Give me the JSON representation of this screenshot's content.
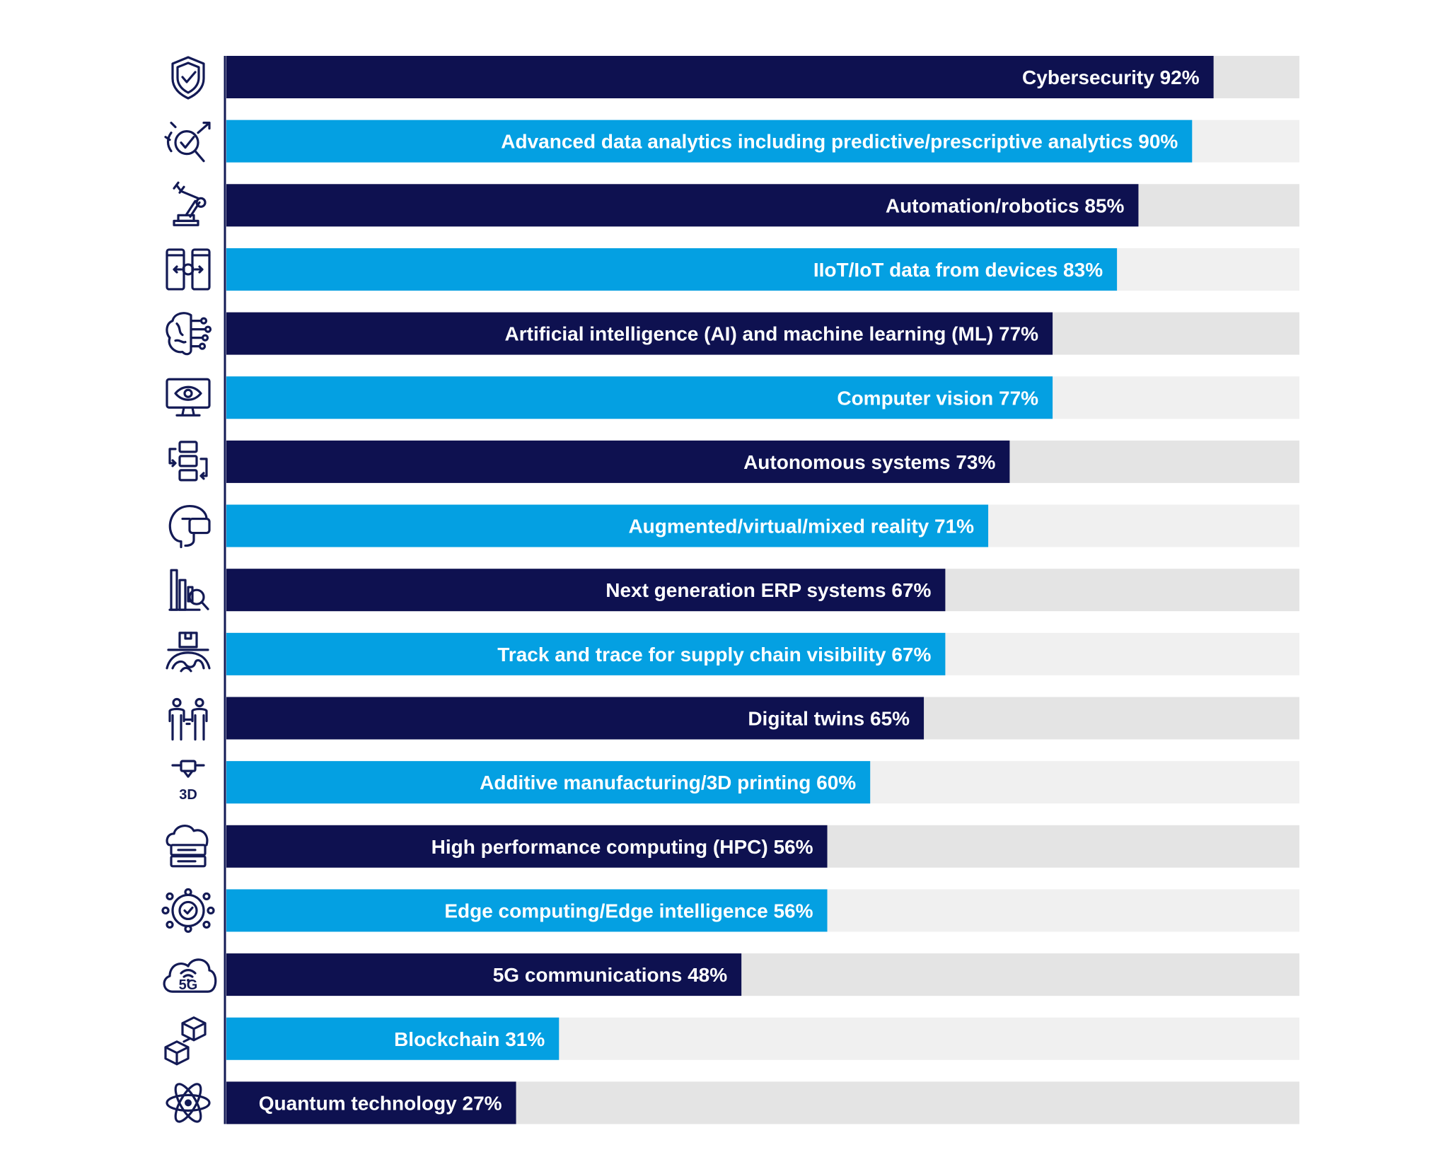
{
  "chart_data": {
    "type": "bar",
    "orientation": "horizontal",
    "xlim": [
      0,
      100
    ],
    "grid": false,
    "legend": "none",
    "colors": {
      "dark": "#0e1150",
      "light": "#04a0e2",
      "track_dark": "#e4e4e4",
      "track_light": "#f0f0f0",
      "axis": "#131a55",
      "label": "#ffffff"
    },
    "categories": [
      "Cybersecurity",
      "Advanced data analytics including predictive/prescriptive analytics",
      "Automation/robotics",
      "IIoT/IoT data from devices",
      "Artificial intelligence (AI) and machine learning (ML)",
      "Computer vision",
      "Autonomous systems",
      "Augmented/virtual/mixed reality",
      "Next generation ERP systems",
      "Track and trace for supply chain visibility",
      "Digital twins",
      "Additive manufacturing/3D printing",
      "High performance computing (HPC)",
      "Edge computing/Edge intelligence",
      "5G communications",
      "Blockchain",
      "Quantum technology"
    ],
    "values": [
      92,
      90,
      85,
      83,
      77,
      77,
      73,
      71,
      67,
      67,
      65,
      60,
      56,
      56,
      48,
      31,
      27
    ],
    "labels": [
      "Cybersecurity 92%",
      "Advanced data analytics including predictive/prescriptive analytics 90%",
      "Automation/robotics 85%",
      "IIoT/IoT data from devices 83%",
      "Artificial intelligence (AI) and machine learning (ML) 77%",
      "Computer vision 77%",
      "Autonomous systems 73%",
      "Augmented/virtual/mixed reality 71%",
      "Next generation ERP systems 67%",
      "Track and trace for supply chain visibility 67%",
      "Digital twins 65%",
      "Additive manufacturing/3D printing 60%",
      "High performance computing (HPC) 56%",
      "Edge computing/Edge intelligence 56%",
      "5G communications 48%",
      "Blockchain 31%",
      "Quantum technology 27%"
    ],
    "icons": [
      "shield-check-icon",
      "target-analytics-icon",
      "robot-arm-icon",
      "iot-devices-icon",
      "ai-brain-icon",
      "computer-vision-icon",
      "autonomous-systems-icon",
      "vr-headset-icon",
      "erp-search-icon",
      "supply-chain-icon",
      "digital-twins-icon",
      "3d-printer-icon",
      "hpc-server-icon",
      "edge-computing-icon",
      "5g-cloud-icon",
      "blockchain-icon",
      "quantum-atom-icon"
    ],
    "icon_text": {
      "3d-printer-icon": "3D",
      "5g-cloud-icon": "5G"
    }
  }
}
